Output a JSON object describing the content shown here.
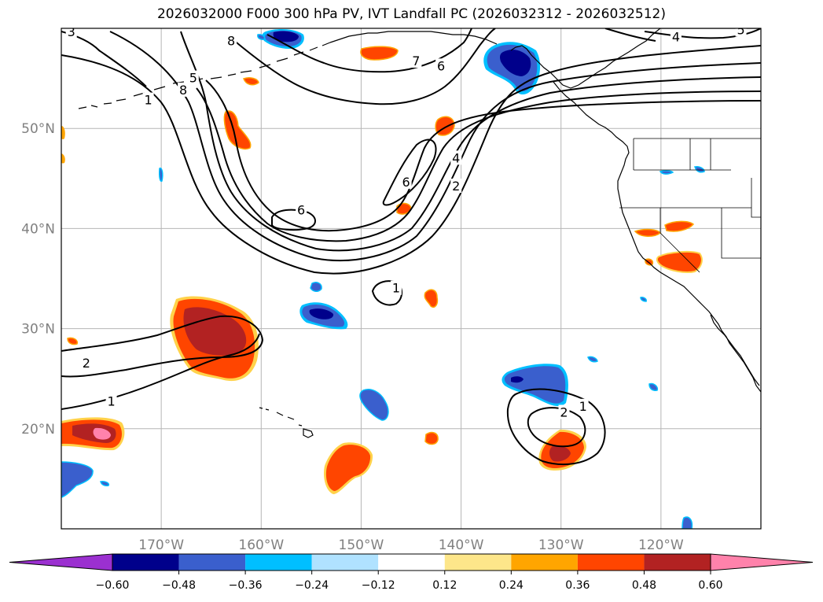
{
  "title": "2026032000 F000 300 hPa PV, IVT Landfall PC (2026032312 - 2026032512)",
  "map": {
    "lon_min": -180,
    "lon_max": -110,
    "lat_min": 10,
    "lat_max": 60,
    "lon_ticks": [
      {
        "lon": -170,
        "label": "170°W"
      },
      {
        "lon": -160,
        "label": "160°W"
      },
      {
        "lon": -150,
        "label": "150°W"
      },
      {
        "lon": -140,
        "label": "140°W"
      },
      {
        "lon": -130,
        "label": "130°W"
      },
      {
        "lon": -120,
        "label": "120°W"
      }
    ],
    "lat_ticks": [
      {
        "lat": 20,
        "label": "20°N"
      },
      {
        "lat": 30,
        "label": "30°N"
      },
      {
        "lat": 40,
        "label": "40°N"
      },
      {
        "lat": 50,
        "label": "50°N"
      }
    ],
    "contour_labels": [
      {
        "text": "3",
        "lon": -179.0,
        "lat": 59.6
      },
      {
        "text": "8",
        "lon": -163.0,
        "lat": 58.7
      },
      {
        "text": "5",
        "lon": -166.8,
        "lat": 55.0
      },
      {
        "text": "8",
        "lon": -167.8,
        "lat": 53.8
      },
      {
        "text": "1",
        "lon": -171.3,
        "lat": 52.8
      },
      {
        "text": "7",
        "lon": -144.5,
        "lat": 56.7
      },
      {
        "text": "6",
        "lon": -142.0,
        "lat": 56.2
      },
      {
        "text": "4",
        "lon": -118.5,
        "lat": 59.1
      },
      {
        "text": "5",
        "lon": -112.0,
        "lat": 59.8
      },
      {
        "text": "6",
        "lon": -145.5,
        "lat": 44.6
      },
      {
        "text": "4",
        "lon": -140.5,
        "lat": 47.0
      },
      {
        "text": "2",
        "lon": -140.5,
        "lat": 44.2
      },
      {
        "text": "6",
        "lon": -156.0,
        "lat": 41.8
      },
      {
        "text": "1",
        "lon": -146.5,
        "lat": 34.0
      },
      {
        "text": "2",
        "lon": -177.5,
        "lat": 26.5
      },
      {
        "text": "1",
        "lon": -175.0,
        "lat": 22.7
      },
      {
        "text": "1",
        "lon": -127.8,
        "lat": 22.2
      },
      {
        "text": "2",
        "lon": -129.7,
        "lat": 21.6
      }
    ]
  },
  "colorbar": {
    "colors": [
      "#9b30d0",
      "#00008b",
      "#3a5fcd",
      "#00bfff",
      "#b0e2ff",
      "#ffffff",
      "#fde68a",
      "#ffa500",
      "#ff4500",
      "#b22222",
      "#ff82ab"
    ],
    "tick_labels": [
      "−0.60",
      "−0.48",
      "−0.36",
      "−0.24",
      "−0.12",
      "0.12",
      "0.24",
      "0.36",
      "0.48",
      "0.60"
    ]
  }
}
